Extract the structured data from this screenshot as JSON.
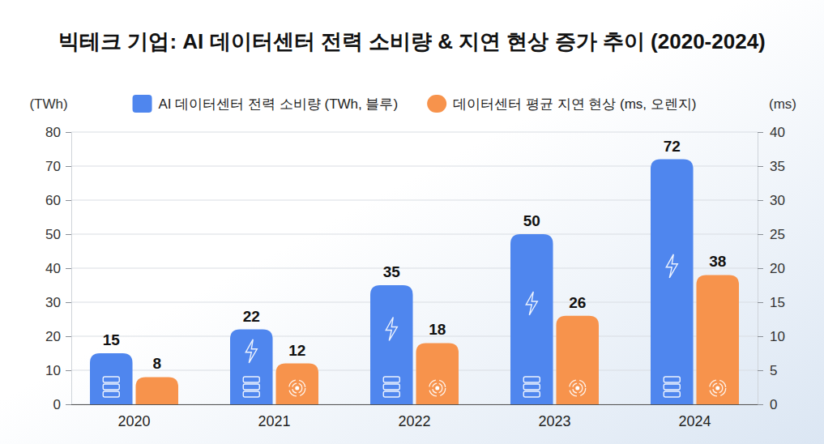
{
  "chart_data": {
    "type": "bar",
    "title": "빅테크 기업: AI 데이터센터 전력 소비량 & 지연 현상 증가 추이 (2020-2024)",
    "ylabel": "(TWh)",
    "y2label": "(ms)",
    "categories": [
      "2020",
      "2021",
      "2022",
      "2023",
      "2024"
    ],
    "series": [
      {
        "name": "AI 데이터센터 전력 소비량 (TWh, 블루)",
        "color": "#4f86ee",
        "values": [
          15,
          22,
          35,
          50,
          72
        ]
      },
      {
        "name": "데이터센터 평균 지연 현상 (ms, 오렌지)",
        "color": "#f7934c",
        "values": [
          8,
          12,
          18,
          26,
          38
        ]
      }
    ],
    "ylim": [
      0,
      80
    ],
    "yticks": [
      0,
      10,
      20,
      30,
      40,
      50,
      60,
      70,
      80
    ],
    "y2lim": [
      0,
      40
    ],
    "y2ticks": [
      0,
      5,
      10,
      15,
      20,
      25,
      30,
      35,
      40
    ],
    "grid": true,
    "legend": "top",
    "data_labels": true
  }
}
